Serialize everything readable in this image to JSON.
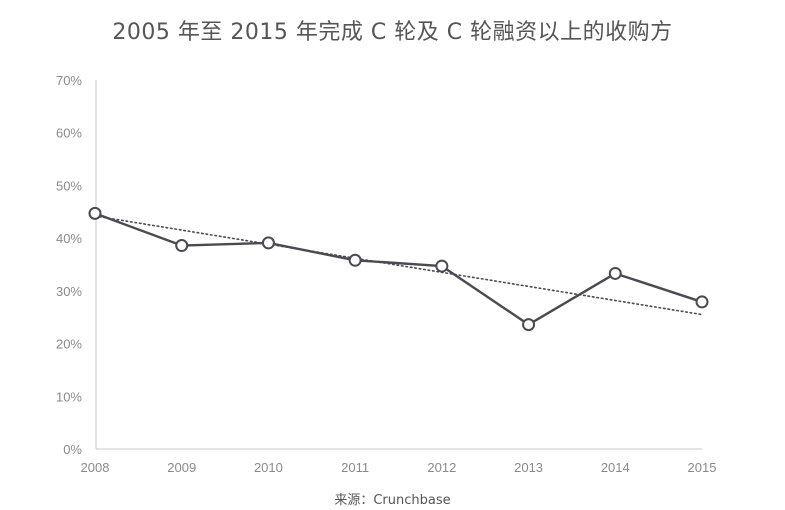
{
  "chart_data": {
    "type": "line",
    "title": "2005 年至 2015 年完成 C 轮及 C 轮融资以上的收购方",
    "source": "来源：Crunchbase",
    "x": [
      "2008",
      "2009",
      "2010",
      "2011",
      "2012",
      "2013",
      "2014",
      "2015"
    ],
    "series": [
      {
        "values": [
          44.7,
          38.6,
          39.1,
          35.8,
          34.7,
          23.6,
          33.3,
          27.9
        ]
      }
    ],
    "trendline": {
      "style": "dotted",
      "start": 44.2,
      "end": 25.5
    },
    "ylim": [
      0,
      70
    ],
    "yticks": [
      "0%",
      "10%",
      "20%",
      "30%",
      "40%",
      "50%",
      "60%",
      "70%"
    ],
    "grid": false,
    "colors": {
      "line": "#4a4a52",
      "marker_fill": "#ffffff",
      "axis": "#c8c8c8",
      "text": "#8a8a8a"
    }
  }
}
